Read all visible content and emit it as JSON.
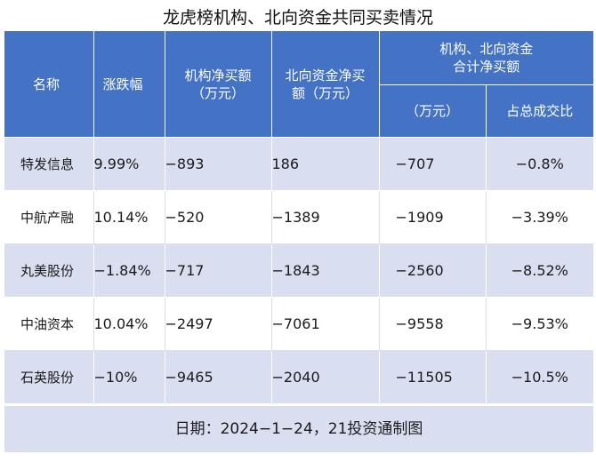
{
  "title": "龙虎榜机构、北向资金共同买卖情况",
  "headers": {
    "name": "名称",
    "change": "涨跌幅",
    "inst_net_line1": "机构净买额",
    "inst_net_line2": "（万元）",
    "north_net_line1": "北向资金净买",
    "north_net_line2": "额（万元）",
    "combined_line1": "机构、北向资金",
    "combined_line2": "合计净买额",
    "combined_sub": "（万元）",
    "ratio_sub": "占总成交比"
  },
  "rows": [
    {
      "name": "特发信息",
      "change": "9.99%",
      "inst_net": "−893",
      "north_net": "186",
      "combined": "−707",
      "ratio": "−0.8%"
    },
    {
      "name": "中航产融",
      "change": "10.14%",
      "inst_net": "−520",
      "north_net": "−1389",
      "combined": "−1909",
      "ratio": "−3.39%"
    },
    {
      "name": "丸美股份",
      "change": "−1.84%",
      "inst_net": "−717",
      "north_net": "−1843",
      "combined": "−2560",
      "ratio": "−8.52%"
    },
    {
      "name": "中油资本",
      "change": "10.04%",
      "inst_net": "−2497",
      "north_net": "−7061",
      "combined": "−9558",
      "ratio": "−9.53%"
    },
    {
      "name": "石英股份",
      "change": "−10%",
      "inst_net": "−9465",
      "north_net": "−2040",
      "combined": "−11505",
      "ratio": "−10.5%"
    }
  ],
  "footer": "日期：2024−1−24，21投资通制图",
  "colors": {
    "header_bg": "#4472c4",
    "row_alt_bg": "#d9dff0"
  }
}
